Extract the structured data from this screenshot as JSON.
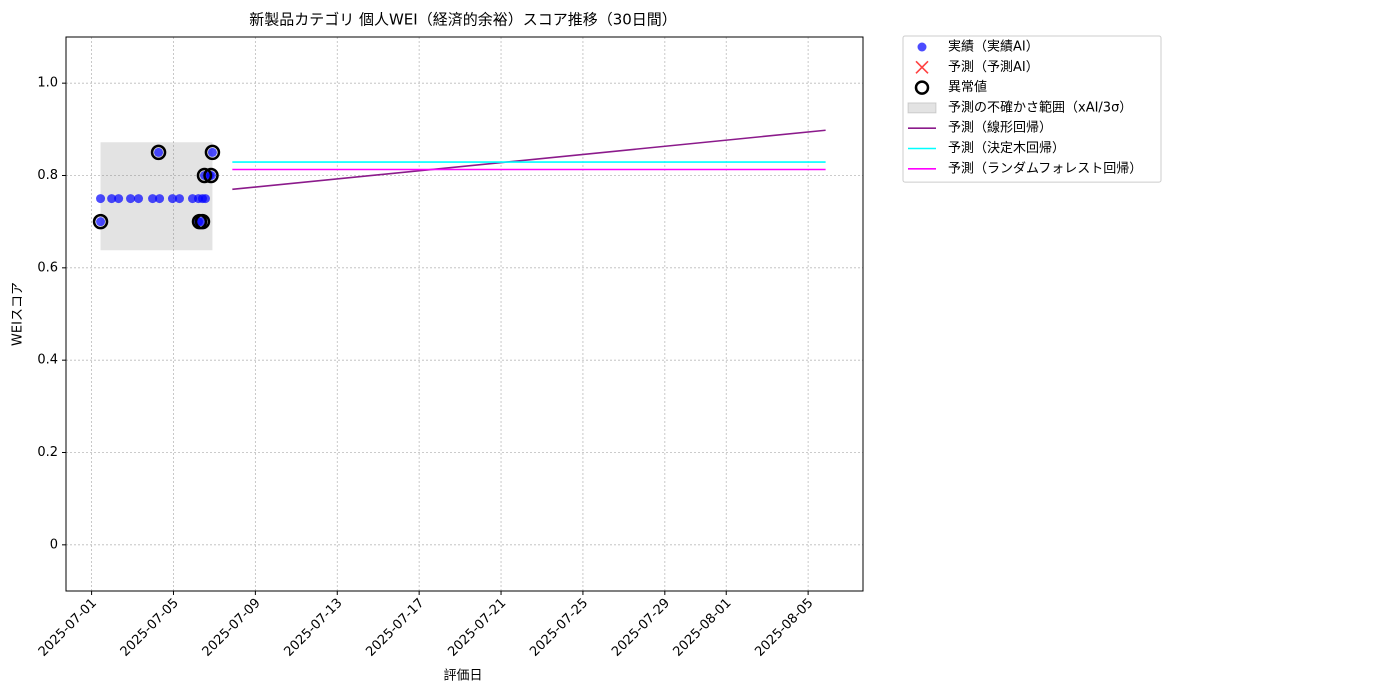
{
  "chart_data": {
    "type": "line",
    "title": "新製品カテゴリ 個人WEI（経済的余裕）スコア推移（30日間）",
    "x_label": "評価日",
    "y_label": "WEIスコア",
    "xlim": [
      "2025-06-29T18:00",
      "2025-08-07T16:20"
    ],
    "ylim": [
      -0.1,
      1.1
    ],
    "xticks": [
      "2025-07-01",
      "2025-07-05",
      "2025-07-09",
      "2025-07-13",
      "2025-07-17",
      "2025-07-21",
      "2025-07-25",
      "2025-07-29",
      "2025-08-01",
      "2025-08-05"
    ],
    "yticks": [
      0.0,
      0.2,
      0.4,
      0.6,
      0.8,
      {
        "value": 1.0,
        "label": "1.0"
      }
    ],
    "grid": true,
    "legend": "outside-upper-right",
    "series": [
      {
        "name": "実績（実績AI）",
        "kind": "scatter",
        "color": "#0000ff",
        "x": [
          "2025-07-01T10:30",
          "2025-07-01T10:30",
          "2025-07-01T23:30",
          "2025-07-02T07:40",
          "2025-07-02T21:40",
          "2025-07-03T07:00",
          "2025-07-03T23:30",
          "2025-07-04T07:40",
          "2025-07-04T06:30",
          "2025-07-04T22:50",
          "2025-07-05T07:00",
          "2025-07-05T22:20",
          "2025-07-06T05:20",
          "2025-07-06T05:20",
          "2025-07-06T08:50",
          "2025-07-06T10:00",
          "2025-07-06T13:30",
          "2025-07-06T12:20",
          "2025-07-06T18:10",
          "2025-07-06T21:40",
          "2025-07-06T20:30"
        ],
        "values": [
          0.7,
          0.75,
          0.75,
          0.75,
          0.75,
          0.75,
          0.75,
          0.75,
          0.85,
          0.75,
          0.75,
          0.75,
          0.7,
          0.75,
          0.7,
          0.75,
          0.75,
          0.8,
          0.8,
          0.85,
          0.8
        ]
      },
      {
        "name": "予測（予測AI）",
        "kind": "cross",
        "color": "#ff0000",
        "x": [],
        "values": []
      },
      {
        "name": "異常値",
        "kind": "ring",
        "color": "#000000",
        "x": [
          "2025-07-01T10:30",
          "2025-07-04T06:30",
          "2025-07-06T06:30",
          "2025-07-06T10:00",
          "2025-07-06T12:20",
          "2025-07-06T20:00",
          "2025-07-06T21:40"
        ],
        "values": [
          0.7,
          0.85,
          0.7,
          0.7,
          0.8,
          0.8,
          0.85
        ]
      },
      {
        "name": "予測の不確かさ範囲（xAI/3σ）",
        "kind": "band",
        "color": "#808080",
        "x": [
          "2025-07-01T10:30",
          "2025-07-06T21:40"
        ],
        "upper": [
          0.872,
          0.872
        ],
        "lower": [
          0.638,
          0.638
        ]
      },
      {
        "name": "予測（線形回帰）",
        "kind": "line",
        "color": "#8b1a8b",
        "x": [
          "2025-07-07T21:00",
          "2025-08-05T20:30"
        ],
        "values": [
          0.77,
          0.898
        ]
      },
      {
        "name": "予測（決定木回帰）",
        "kind": "line",
        "color": "#00ffff",
        "x": [
          "2025-07-07T21:00",
          "2025-08-05T20:30"
        ],
        "values": [
          0.829,
          0.829
        ]
      },
      {
        "name": "予測（ランダムフォレスト回帰）",
        "kind": "line",
        "color": "#ff00ff",
        "x": [
          "2025-07-07T21:00",
          "2025-08-05T20:30"
        ],
        "values": [
          0.813,
          0.813
        ]
      }
    ]
  }
}
